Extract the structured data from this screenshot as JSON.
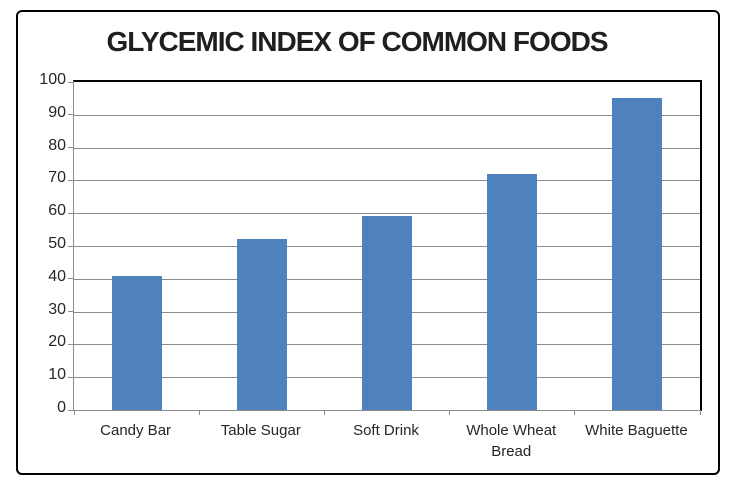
{
  "title": "GLYCEMIC INDEX OF COMMON FOODS",
  "colors": {
    "bar": "#4F81BD",
    "gridline": "#8C8C8C",
    "axis": "#8C8C8C",
    "plot_border": "#000000",
    "frame_border": "#000000",
    "title_text": "#1F1F1F",
    "label_text": "#262626",
    "background": "#FFFFFF"
  },
  "chart_data": {
    "type": "bar",
    "title": "GLYCEMIC INDEX OF COMMON FOODS",
    "categories": [
      "Candy Bar",
      "Table Sugar",
      "Soft Drink",
      "Whole Wheat Bread",
      "White Baguette"
    ],
    "values": [
      41,
      52,
      59,
      72,
      95
    ],
    "xlabel": "",
    "ylabel": "",
    "ylim": [
      0,
      100
    ],
    "ytick_interval": 10,
    "yticks": [
      0,
      10,
      20,
      30,
      40,
      50,
      60,
      70,
      80,
      90,
      100
    ],
    "grid": true,
    "legend": false,
    "bar_color": "#4F81BD"
  }
}
